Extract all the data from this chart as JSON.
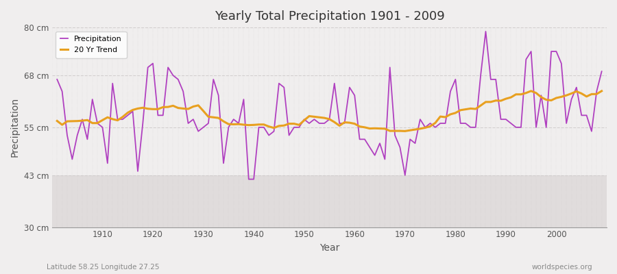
{
  "title": "Yearly Total Precipitation 1901 - 2009",
  "xlabel": "Year",
  "ylabel": "Precipitation",
  "bottom_left_label": "Latitude 58.25 Longitude 27.25",
  "bottom_right_label": "worldspecies.org",
  "ylim": [
    30,
    80
  ],
  "yticks": [
    30,
    43,
    55,
    68,
    80
  ],
  "ytick_labels": [
    "30 cm",
    "43 cm",
    "55 cm",
    "68 cm",
    "80 cm"
  ],
  "xlim": [
    1900,
    2010
  ],
  "xticks": [
    1910,
    1920,
    1930,
    1940,
    1950,
    1960,
    1970,
    1980,
    1990,
    2000
  ],
  "precipitation_color": "#b040c0",
  "trend_color": "#e8a020",
  "upper_bg_color": "#f0eeee",
  "lower_bg_color": "#e0dcdc",
  "grid_color": "#d0cccc",
  "years": [
    1901,
    1902,
    1903,
    1904,
    1905,
    1906,
    1907,
    1908,
    1909,
    1910,
    1911,
    1912,
    1913,
    1914,
    1915,
    1916,
    1917,
    1918,
    1919,
    1920,
    1921,
    1922,
    1923,
    1924,
    1925,
    1926,
    1927,
    1928,
    1929,
    1930,
    1931,
    1932,
    1933,
    1934,
    1935,
    1936,
    1937,
    1938,
    1939,
    1940,
    1941,
    1942,
    1943,
    1944,
    1945,
    1946,
    1947,
    1948,
    1949,
    1950,
    1951,
    1952,
    1953,
    1954,
    1955,
    1956,
    1957,
    1958,
    1959,
    1960,
    1961,
    1962,
    1963,
    1964,
    1965,
    1966,
    1967,
    1968,
    1969,
    1970,
    1971,
    1972,
    1973,
    1974,
    1975,
    1976,
    1977,
    1978,
    1979,
    1980,
    1981,
    1982,
    1983,
    1984,
    1985,
    1986,
    1987,
    1988,
    1989,
    1990,
    1991,
    1992,
    1993,
    1994,
    1995,
    1996,
    1997,
    1998,
    1999,
    2000,
    2001,
    2002,
    2003,
    2004,
    2005,
    2006,
    2007,
    2008,
    2009
  ],
  "precipitation": [
    67,
    64,
    53,
    47,
    53,
    57,
    52,
    62,
    56,
    55,
    46,
    66,
    57,
    57,
    58,
    59,
    44,
    56,
    70,
    71,
    58,
    58,
    70,
    68,
    67,
    64,
    56,
    57,
    54,
    55,
    56,
    67,
    63,
    46,
    55,
    57,
    56,
    62,
    42,
    42,
    55,
    55,
    53,
    54,
    66,
    65,
    53,
    55,
    55,
    57,
    56,
    57,
    56,
    56,
    57,
    66,
    56,
    56,
    65,
    63,
    52,
    52,
    50,
    48,
    51,
    47,
    70,
    53,
    50,
    43,
    52,
    51,
    57,
    55,
    56,
    55,
    56,
    56,
    64,
    67,
    56,
    56,
    55,
    55,
    68,
    79,
    67,
    67,
    57,
    57,
    56,
    55,
    55,
    72,
    74,
    55,
    63,
    55,
    74,
    74,
    71,
    56,
    62,
    65,
    58,
    58,
    54,
    64,
    69
  ],
  "trend_window": 20,
  "split_y": 43
}
